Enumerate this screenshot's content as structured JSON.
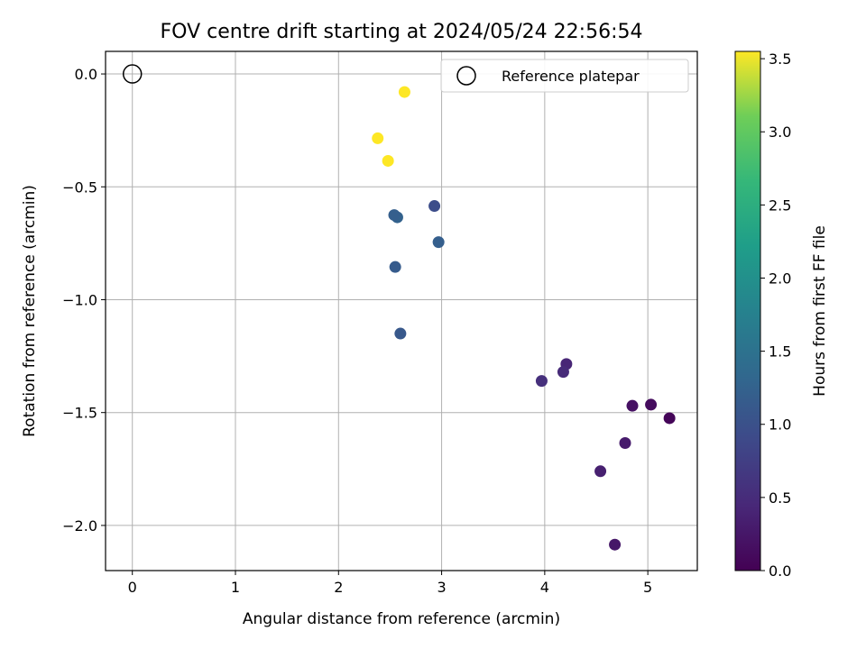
{
  "chart_data": {
    "type": "scatter",
    "title": "FOV centre drift starting at 2024/05/24 22:56:54",
    "xlabel": "Angular distance from reference (arcmin)",
    "ylabel": "Rotation from reference (arcmin)",
    "xlim": [
      -0.26,
      5.48
    ],
    "ylim": [
      -2.2,
      0.1
    ],
    "xticks": [
      0,
      1,
      2,
      3,
      4,
      5
    ],
    "yticks": [
      0.0,
      -0.5,
      -1.0,
      -1.5,
      -2.0
    ],
    "xtick_labels": [
      "0",
      "1",
      "2",
      "3",
      "4",
      "5"
    ],
    "ytick_labels": [
      "0.0",
      "−0.5",
      "−1.0",
      "−1.5",
      "−2.0"
    ],
    "grid": true,
    "reference": {
      "x": 0,
      "y": 0,
      "label": "Reference platepar"
    },
    "legend": {
      "placement": "upper right",
      "entries": [
        "Reference platepar"
      ]
    },
    "colorbar": {
      "label": "Hours from first FF file",
      "colormap": "viridis",
      "range": [
        0,
        3.55
      ],
      "ticks": [
        0.0,
        0.5,
        1.0,
        1.5,
        2.0,
        2.5,
        3.0,
        3.5
      ],
      "tick_labels": [
        "0.0",
        "0.5",
        "1.0",
        "1.5",
        "2.0",
        "2.5",
        "3.0",
        "3.5"
      ]
    },
    "points": [
      {
        "x": 5.21,
        "y": -1.525,
        "c": 0.05
      },
      {
        "x": 5.03,
        "y": -1.465,
        "c": 0.12
      },
      {
        "x": 4.85,
        "y": -1.47,
        "c": 0.18
      },
      {
        "x": 4.68,
        "y": -2.085,
        "c": 0.25
      },
      {
        "x": 4.78,
        "y": -1.635,
        "c": 0.3
      },
      {
        "x": 4.54,
        "y": -1.76,
        "c": 0.35
      },
      {
        "x": 4.21,
        "y": -1.285,
        "c": 0.42
      },
      {
        "x": 4.18,
        "y": -1.32,
        "c": 0.48
      },
      {
        "x": 3.97,
        "y": -1.36,
        "c": 0.55
      },
      {
        "x": 2.6,
        "y": -1.15,
        "c": 1.1
      },
      {
        "x": 2.55,
        "y": -0.855,
        "c": 1.15
      },
      {
        "x": 2.97,
        "y": -0.745,
        "c": 1.2
      },
      {
        "x": 2.93,
        "y": -0.585,
        "c": 0.95
      },
      {
        "x": 2.57,
        "y": -0.635,
        "c": 1.25
      },
      {
        "x": 2.54,
        "y": -0.625,
        "c": 1.2
      },
      {
        "x": 2.48,
        "y": -0.385,
        "c": 3.55
      },
      {
        "x": 2.38,
        "y": -0.285,
        "c": 3.55
      },
      {
        "x": 2.64,
        "y": -0.08,
        "c": 3.55
      }
    ]
  }
}
